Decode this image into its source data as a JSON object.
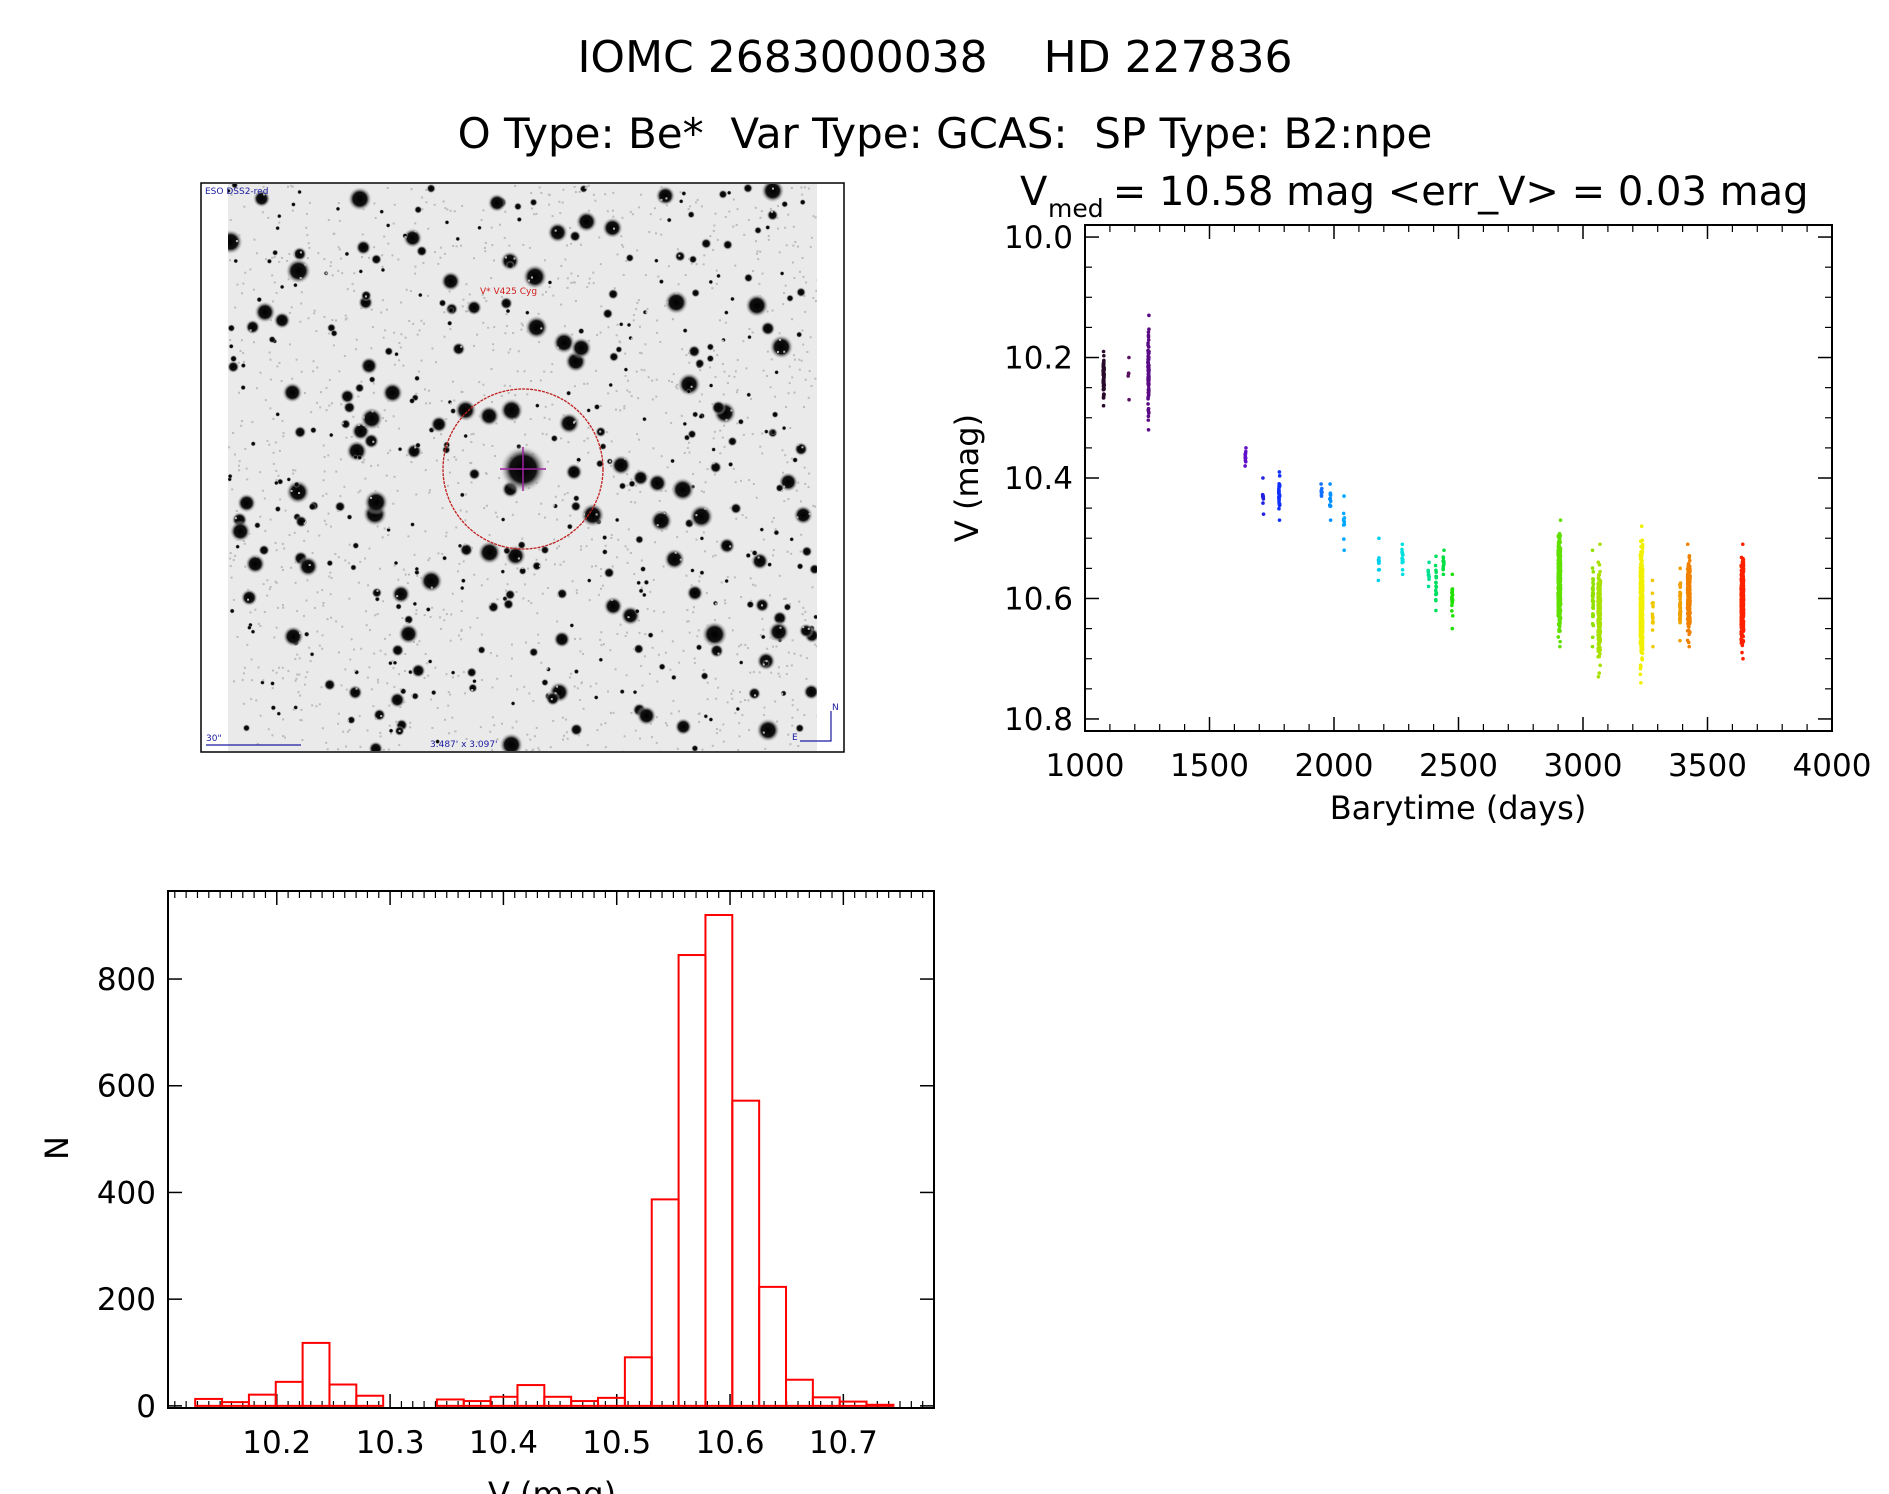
{
  "header": {
    "title": "IOMC 2683000038    HD 227836",
    "subtitle": "O Type: Be*  Var Type: GCAS:  SP Type: B2:npe"
  },
  "finder_image": {
    "survey_label": "ESO DSS2-red",
    "target_label": "V* V425 Cyg",
    "scale_label": "30\"",
    "fov_label": "3.487' x 3.097'",
    "north_label": "N",
    "east_label": "E"
  },
  "chart_data": [
    {
      "type": "scatter",
      "title_parts": {
        "v": "V",
        "sub": "med",
        "rest": " = 10.58 mag <err_V> = 0.03 mag"
      },
      "xlabel": "Barytime (days)",
      "ylabel": "V (mag)",
      "xlim": [
        1000,
        4000
      ],
      "ylim": [
        10.82,
        9.98
      ],
      "y_inverted": true,
      "xticks": [
        "1000",
        "1500",
        "2000",
        "2500",
        "3000",
        "3500",
        "4000"
      ],
      "yticks": [
        "10.0",
        "10.2",
        "10.4",
        "10.6",
        "10.8"
      ],
      "clusters": [
        {
          "t": 1075,
          "vmin": 10.19,
          "vmax": 10.28,
          "n": 80,
          "color": "#2a0a2a"
        },
        {
          "t": 1175,
          "vmin": 10.2,
          "vmax": 10.27,
          "n": 5,
          "color": "#5a1060"
        },
        {
          "t": 1255,
          "vmin": 10.13,
          "vmax": 10.32,
          "n": 90,
          "color": "#5a0a85"
        },
        {
          "t": 1645,
          "vmin": 10.35,
          "vmax": 10.38,
          "n": 12,
          "color": "#6010c8"
        },
        {
          "t": 1715,
          "vmin": 10.4,
          "vmax": 10.46,
          "n": 10,
          "color": "#2020e0"
        },
        {
          "t": 1780,
          "vmin": 10.39,
          "vmax": 10.47,
          "n": 30,
          "color": "#1030ff"
        },
        {
          "t": 1950,
          "vmin": 10.41,
          "vmax": 10.43,
          "n": 8,
          "color": "#1070ff"
        },
        {
          "t": 1985,
          "vmin": 10.41,
          "vmax": 10.47,
          "n": 12,
          "color": "#0090ff"
        },
        {
          "t": 2040,
          "vmin": 10.43,
          "vmax": 10.52,
          "n": 10,
          "color": "#00a8ff"
        },
        {
          "t": 2180,
          "vmin": 10.5,
          "vmax": 10.57,
          "n": 10,
          "color": "#00d0f0"
        },
        {
          "t": 2275,
          "vmin": 10.51,
          "vmax": 10.56,
          "n": 14,
          "color": "#00e0e0"
        },
        {
          "t": 2380,
          "vmin": 10.54,
          "vmax": 10.58,
          "n": 10,
          "color": "#00e090"
        },
        {
          "t": 2410,
          "vmin": 10.53,
          "vmax": 10.62,
          "n": 20,
          "color": "#00e060"
        },
        {
          "t": 2440,
          "vmin": 10.52,
          "vmax": 10.56,
          "n": 14,
          "color": "#00e040"
        },
        {
          "t": 2475,
          "vmin": 10.56,
          "vmax": 10.65,
          "n": 20,
          "color": "#20e000"
        },
        {
          "t": 2905,
          "vmin": 10.47,
          "vmax": 10.68,
          "n": 400,
          "color": "#60e000"
        },
        {
          "t": 3040,
          "vmin": 10.52,
          "vmax": 10.68,
          "n": 40,
          "color": "#90e000"
        },
        {
          "t": 3065,
          "vmin": 10.51,
          "vmax": 10.73,
          "n": 200,
          "color": "#a8e000"
        },
        {
          "t": 3235,
          "vmin": 10.48,
          "vmax": 10.74,
          "n": 400,
          "color": "#f0f000"
        },
        {
          "t": 3280,
          "vmin": 10.57,
          "vmax": 10.68,
          "n": 15,
          "color": "#f0c800"
        },
        {
          "t": 3390,
          "vmin": 10.55,
          "vmax": 10.67,
          "n": 40,
          "color": "#f0a000"
        },
        {
          "t": 3425,
          "vmin": 10.51,
          "vmax": 10.68,
          "n": 250,
          "color": "#f08000"
        },
        {
          "t": 3640,
          "vmin": 10.51,
          "vmax": 10.7,
          "n": 400,
          "color": "#ff2000"
        }
      ]
    },
    {
      "type": "bar",
      "subtype": "histogram",
      "xlabel": "V (mag)",
      "ylabel": "N",
      "xlim": [
        10.104,
        10.78
      ],
      "ylim": [
        -4,
        965
      ],
      "xticks": [
        "10.2",
        "10.3",
        "10.4",
        "10.5",
        "10.6",
        "10.7"
      ],
      "yticks": [
        "0",
        "200",
        "400",
        "600",
        "800"
      ],
      "bin_start": 10.128,
      "bin_width": 0.0237,
      "counts": [
        13,
        7,
        21,
        45,
        118,
        40,
        19,
        0,
        0,
        12,
        9,
        17,
        39,
        17,
        9,
        15,
        91,
        387,
        845,
        920,
        572,
        223,
        49,
        16,
        8,
        2
      ],
      "color": "#ff0000"
    }
  ]
}
